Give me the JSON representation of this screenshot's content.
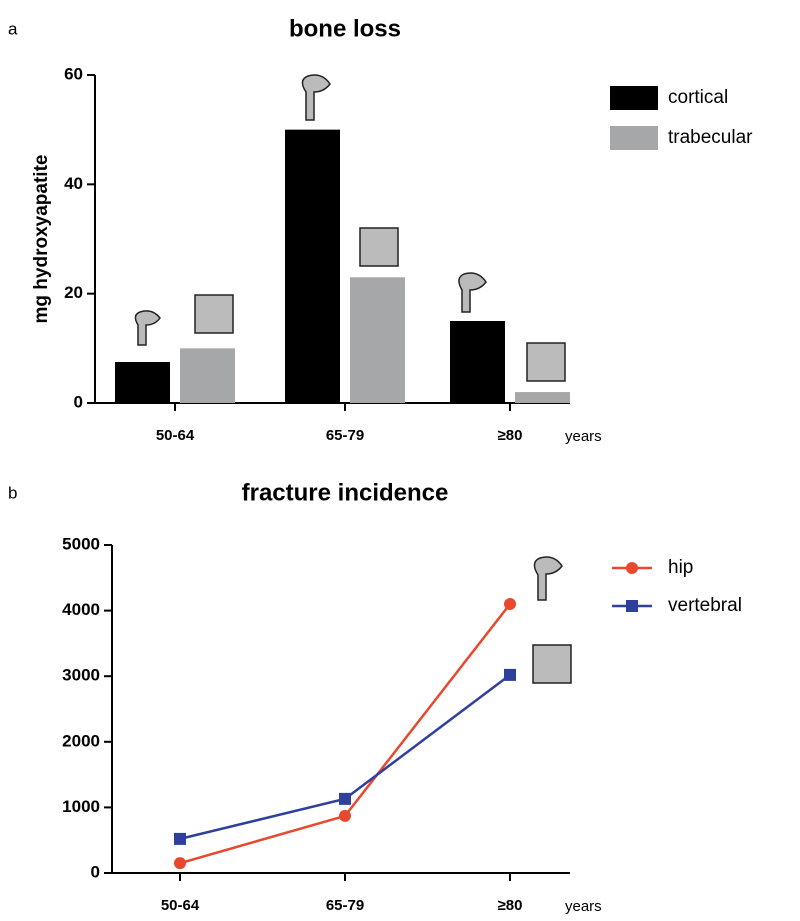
{
  "chart_data": [
    {
      "type": "bar",
      "panel_label": "a",
      "title": "bone loss",
      "y_label": "mg hydroxyapatite",
      "x_label": "years",
      "categories": [
        "50-64",
        "65-79",
        "≥80"
      ],
      "series": [
        {
          "name": "cortical",
          "color": "#000000",
          "values": [
            7.5,
            50,
            15
          ]
        },
        {
          "name": "trabecular",
          "color": "#a6a7a9",
          "values": [
            10,
            23,
            2
          ]
        }
      ],
      "ylim": [
        0,
        60
      ],
      "yticks": [
        0,
        20,
        40,
        60
      ],
      "legend": "right"
    },
    {
      "type": "line",
      "panel_label": "b",
      "title": "fracture incidence",
      "x_label": "years",
      "categories": [
        "50-64",
        "65-79",
        "≥80"
      ],
      "series": [
        {
          "name": "hip",
          "color": "#e8482e",
          "marker": "circle",
          "values": [
            150,
            870,
            4100
          ]
        },
        {
          "name": "vertebral",
          "color": "#2e3f9c",
          "marker": "square",
          "values": [
            520,
            1130,
            3020
          ]
        }
      ],
      "ylim": [
        0,
        5000
      ],
      "yticks": [
        0,
        1000,
        2000,
        3000,
        4000,
        5000
      ],
      "legend": "right"
    }
  ]
}
